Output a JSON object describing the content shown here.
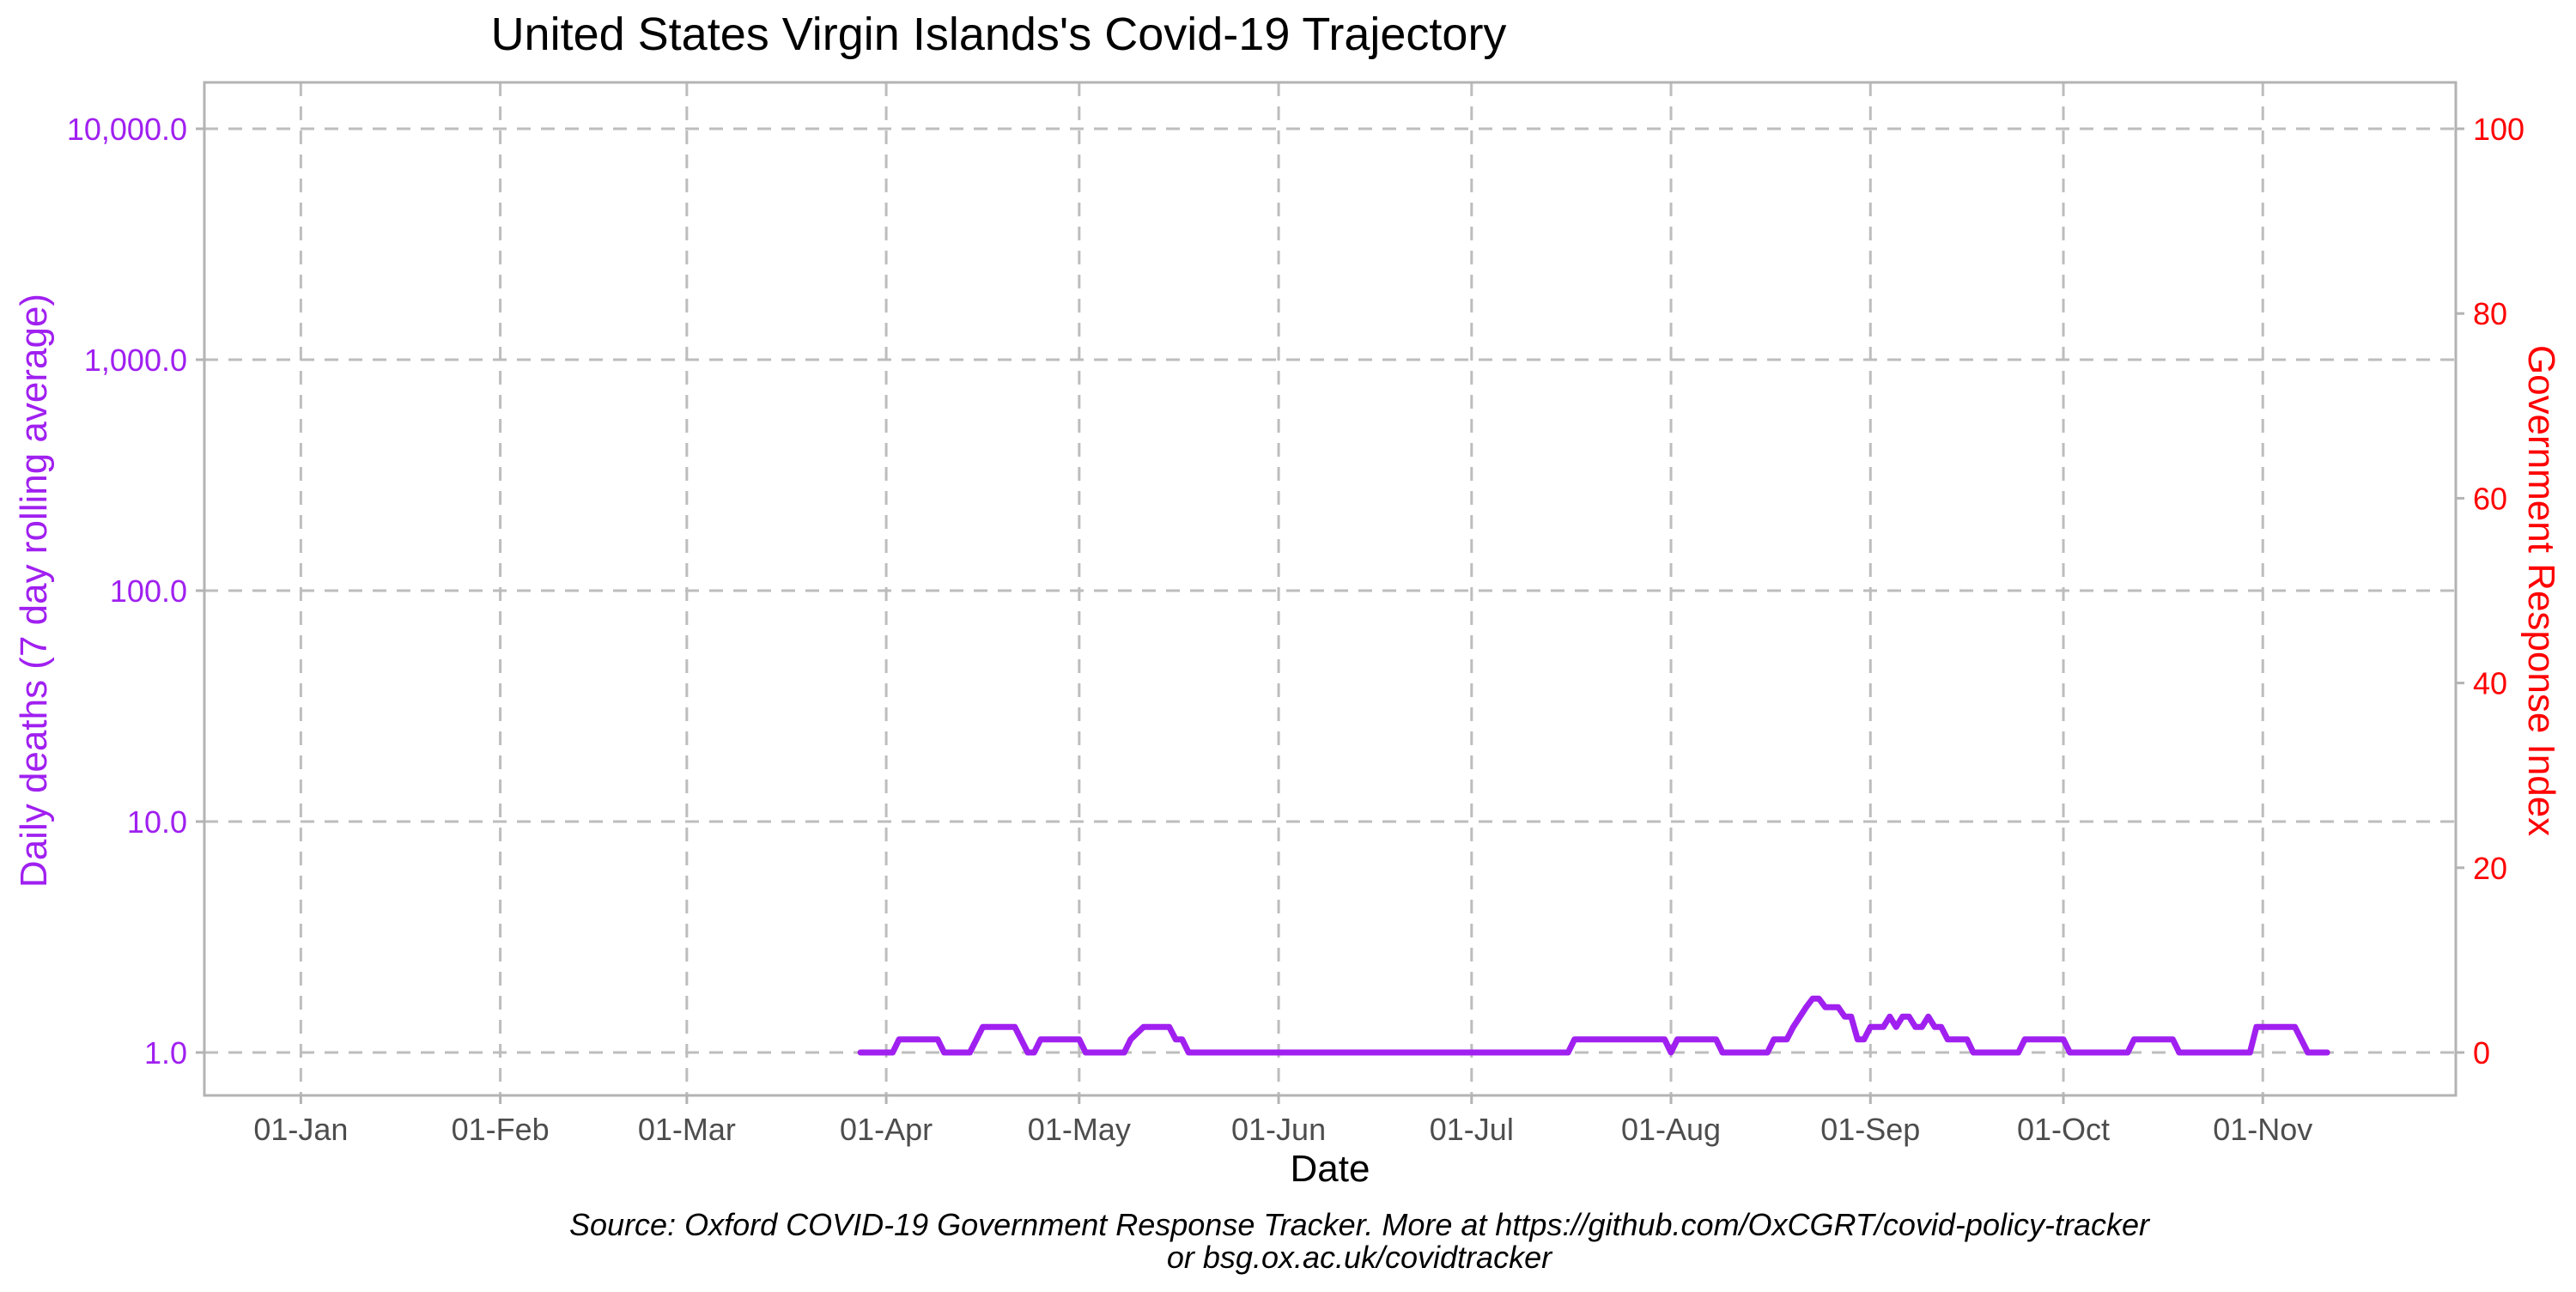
{
  "colors": {
    "deaths": "#a020f0",
    "response": "#ff0000",
    "grid": "#bdbdbd",
    "axis": "#b3b3b3"
  },
  "chart_data": {
    "type": "line",
    "title": "United States Virgin Islands's Covid-19 Trajectory",
    "xlabel": "Date",
    "ylabel_left": "Daily deaths (7 day rolling average)",
    "ylabel_right": "Government Response Index",
    "y_left_scale": "log10",
    "y_left_lim": [
      1,
      10000
    ],
    "y_left_ticks": [
      1,
      10,
      100,
      1000,
      10000
    ],
    "y_left_tick_labels": [
      "1.0",
      "10.0",
      "100.0",
      "1,000.0",
      "10,000.0"
    ],
    "y_right_lim": [
      0,
      100
    ],
    "y_right_ticks": [
      0,
      20,
      40,
      60,
      80,
      100
    ],
    "y_right_tick_labels": [
      "0",
      "20",
      "40",
      "60",
      "80",
      "100"
    ],
    "x_lim": [
      "2019-12-17",
      "2020-12-01"
    ],
    "x_ticks": [
      "2020-01-01",
      "2020-02-01",
      "2020-03-01",
      "2020-04-01",
      "2020-05-01",
      "2020-06-01",
      "2020-07-01",
      "2020-08-01",
      "2020-09-01",
      "2020-10-01",
      "2020-11-01"
    ],
    "x_tick_labels": [
      "01-Jan",
      "01-Feb",
      "01-Mar",
      "01-Apr",
      "01-May",
      "01-Jun",
      "01-Jul",
      "01-Aug",
      "01-Sep",
      "01-Oct",
      "01-Nov"
    ],
    "grid": true,
    "series": [
      {
        "axis": "left",
        "points": [
          [
            "2020-03-28",
            1.0
          ],
          [
            "2020-04-02",
            1.0
          ],
          [
            "2020-04-03",
            1.14
          ],
          [
            "2020-04-09",
            1.14
          ],
          [
            "2020-04-10",
            1.0
          ],
          [
            "2020-04-14",
            1.0
          ],
          [
            "2020-04-16",
            1.29
          ],
          [
            "2020-04-21",
            1.29
          ],
          [
            "2020-04-23",
            1.0
          ],
          [
            "2020-04-24",
            1.0
          ],
          [
            "2020-04-25",
            1.14
          ],
          [
            "2020-05-01",
            1.14
          ],
          [
            "2020-05-02",
            1.0
          ],
          [
            "2020-05-08",
            1.0
          ],
          [
            "2020-05-09",
            1.14
          ],
          [
            "2020-05-11",
            1.29
          ],
          [
            "2020-05-15",
            1.29
          ],
          [
            "2020-05-16",
            1.14
          ],
          [
            "2020-05-17",
            1.14
          ],
          [
            "2020-05-18",
            1.0
          ],
          [
            "2020-07-16",
            1.0
          ],
          [
            "2020-07-17",
            1.14
          ],
          [
            "2020-07-31",
            1.14
          ],
          [
            "2020-08-01",
            1.0
          ],
          [
            "2020-08-02",
            1.14
          ],
          [
            "2020-08-08",
            1.14
          ],
          [
            "2020-08-09",
            1.0
          ],
          [
            "2020-08-16",
            1.0
          ],
          [
            "2020-08-17",
            1.14
          ],
          [
            "2020-08-19",
            1.14
          ],
          [
            "2020-08-20",
            1.29
          ],
          [
            "2020-08-22",
            1.57
          ],
          [
            "2020-08-23",
            1.71
          ],
          [
            "2020-08-24",
            1.71
          ],
          [
            "2020-08-25",
            1.57
          ],
          [
            "2020-08-27",
            1.57
          ],
          [
            "2020-08-28",
            1.43
          ],
          [
            "2020-08-29",
            1.43
          ],
          [
            "2020-08-30",
            1.14
          ],
          [
            "2020-08-31",
            1.14
          ],
          [
            "2020-09-01",
            1.29
          ],
          [
            "2020-09-03",
            1.29
          ],
          [
            "2020-09-04",
            1.43
          ],
          [
            "2020-09-05",
            1.29
          ],
          [
            "2020-09-06",
            1.43
          ],
          [
            "2020-09-07",
            1.43
          ],
          [
            "2020-09-08",
            1.29
          ],
          [
            "2020-09-09",
            1.29
          ],
          [
            "2020-09-10",
            1.43
          ],
          [
            "2020-09-11",
            1.29
          ],
          [
            "2020-09-12",
            1.29
          ],
          [
            "2020-09-13",
            1.14
          ],
          [
            "2020-09-16",
            1.14
          ],
          [
            "2020-09-17",
            1.0
          ],
          [
            "2020-09-24",
            1.0
          ],
          [
            "2020-09-25",
            1.14
          ],
          [
            "2020-10-01",
            1.14
          ],
          [
            "2020-10-02",
            1.0
          ],
          [
            "2020-10-11",
            1.0
          ],
          [
            "2020-10-12",
            1.14
          ],
          [
            "2020-10-18",
            1.14
          ],
          [
            "2020-10-19",
            1.0
          ],
          [
            "2020-10-30",
            1.0
          ],
          [
            "2020-10-31",
            1.29
          ],
          [
            "2020-11-06",
            1.29
          ],
          [
            "2020-11-08",
            1.0
          ],
          [
            "2020-11-11",
            1.0
          ]
        ]
      }
    ]
  },
  "caption": {
    "line1": "Source: Oxford COVID-19 Government Response Tracker. More at https://github.com/OxCGRT/covid-policy-tracker",
    "line2": "or bsg.ox.ac.uk/covidtracker"
  }
}
